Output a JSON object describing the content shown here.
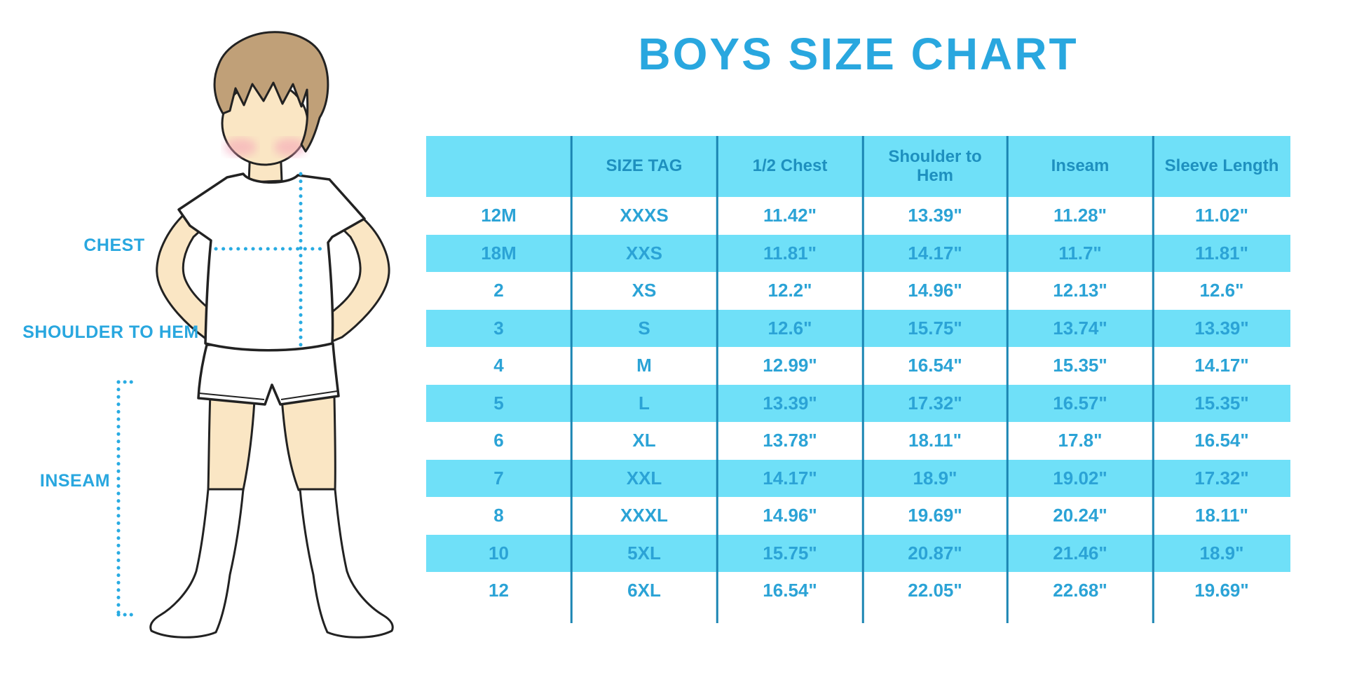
{
  "title": "BOYS SIZE CHART",
  "figure": {
    "labels": {
      "chest": "CHEST",
      "shoulder_to_hem": "SHOULDER TO HEM",
      "inseam": "INSEAM"
    }
  },
  "chart_data": {
    "type": "table",
    "title": "BOYS SIZE CHART",
    "columns": [
      "",
      "SIZE TAG",
      "1/2 Chest",
      "Shoulder to Hem",
      "Inseam",
      "Sleeve Length"
    ],
    "rows": [
      [
        "12M",
        "XXXS",
        "11.42\"",
        "13.39\"",
        "11.28\"",
        "11.02\""
      ],
      [
        "18M",
        "XXS",
        "11.81\"",
        "14.17\"",
        "11.7\"",
        "11.81\""
      ],
      [
        "2",
        "XS",
        "12.2\"",
        "14.96\"",
        "12.13\"",
        "12.6\""
      ],
      [
        "3",
        "S",
        "12.6\"",
        "15.75\"",
        "13.74\"",
        "13.39\""
      ],
      [
        "4",
        "M",
        "12.99\"",
        "16.54\"",
        "15.35\"",
        "14.17\""
      ],
      [
        "5",
        "L",
        "13.39\"",
        "17.32\"",
        "16.57\"",
        "15.35\""
      ],
      [
        "6",
        "XL",
        "13.78\"",
        "18.11\"",
        "17.8\"",
        "16.54\""
      ],
      [
        "7",
        "XXL",
        "14.17\"",
        "18.9\"",
        "19.02\"",
        "17.32\""
      ],
      [
        "8",
        "XXXL",
        "14.96\"",
        "19.69\"",
        "20.24\"",
        "18.11\""
      ],
      [
        "10",
        "5XL",
        "15.75\"",
        "20.87\"",
        "21.46\"",
        "18.9\""
      ],
      [
        "12",
        "6XL",
        "16.54\"",
        "22.05\"",
        "22.68\"",
        "19.69\""
      ]
    ],
    "layout": {
      "header_background": "cyan",
      "striping": "alternate data rows cyan starting with second row (18M, 3, 5, 7, 10)",
      "grid": "vertical column dividers only, no outer border"
    }
  },
  "colors": {
    "accent_blue": "#29A7DF",
    "stripe_cyan": "#6FE0F8",
    "header_text": "#1E90BF",
    "table_text": "#2BA3D6",
    "divider": "#1B85B3",
    "dotted_line": "#29ABE2",
    "skin": "#FAE6C4",
    "hair": "#C0A078",
    "blush": "#F4A0B7"
  }
}
